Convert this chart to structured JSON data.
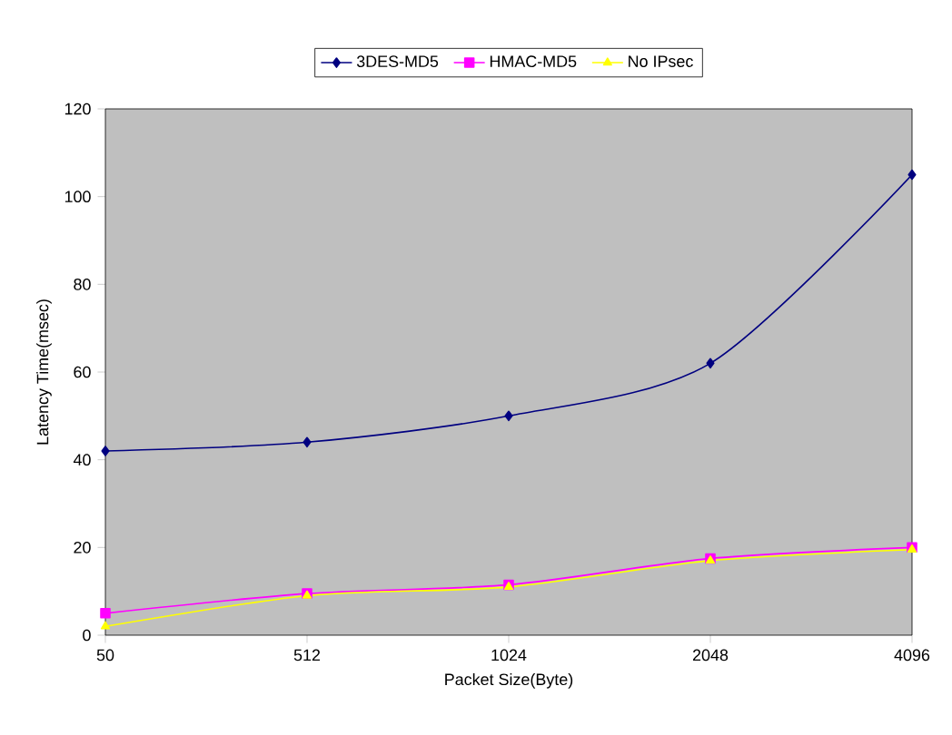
{
  "chart_data": {
    "type": "line",
    "xlabel": "Packet Size(Byte)",
    "ylabel": "Latency Time(msec)",
    "categories": [
      "50",
      "512",
      "1024",
      "2048",
      "4096"
    ],
    "series": [
      {
        "name": "3DES-MD5",
        "color": "#000080",
        "marker": "diamond",
        "values": [
          42,
          44,
          50,
          62,
          105
        ]
      },
      {
        "name": "HMAC-MD5",
        "color": "#ff00ff",
        "marker": "square",
        "values": [
          5,
          9.5,
          11.5,
          17.5,
          20
        ]
      },
      {
        "name": "No IPsec",
        "color": "#ffff00",
        "marker": "triangle",
        "values": [
          2,
          9,
          11,
          17,
          19.5
        ]
      }
    ],
    "ylim": [
      0,
      120
    ],
    "yticks": [
      0,
      20,
      40,
      60,
      80,
      100,
      120
    ],
    "grid": false,
    "legend": "top",
    "line_style": "solid"
  }
}
